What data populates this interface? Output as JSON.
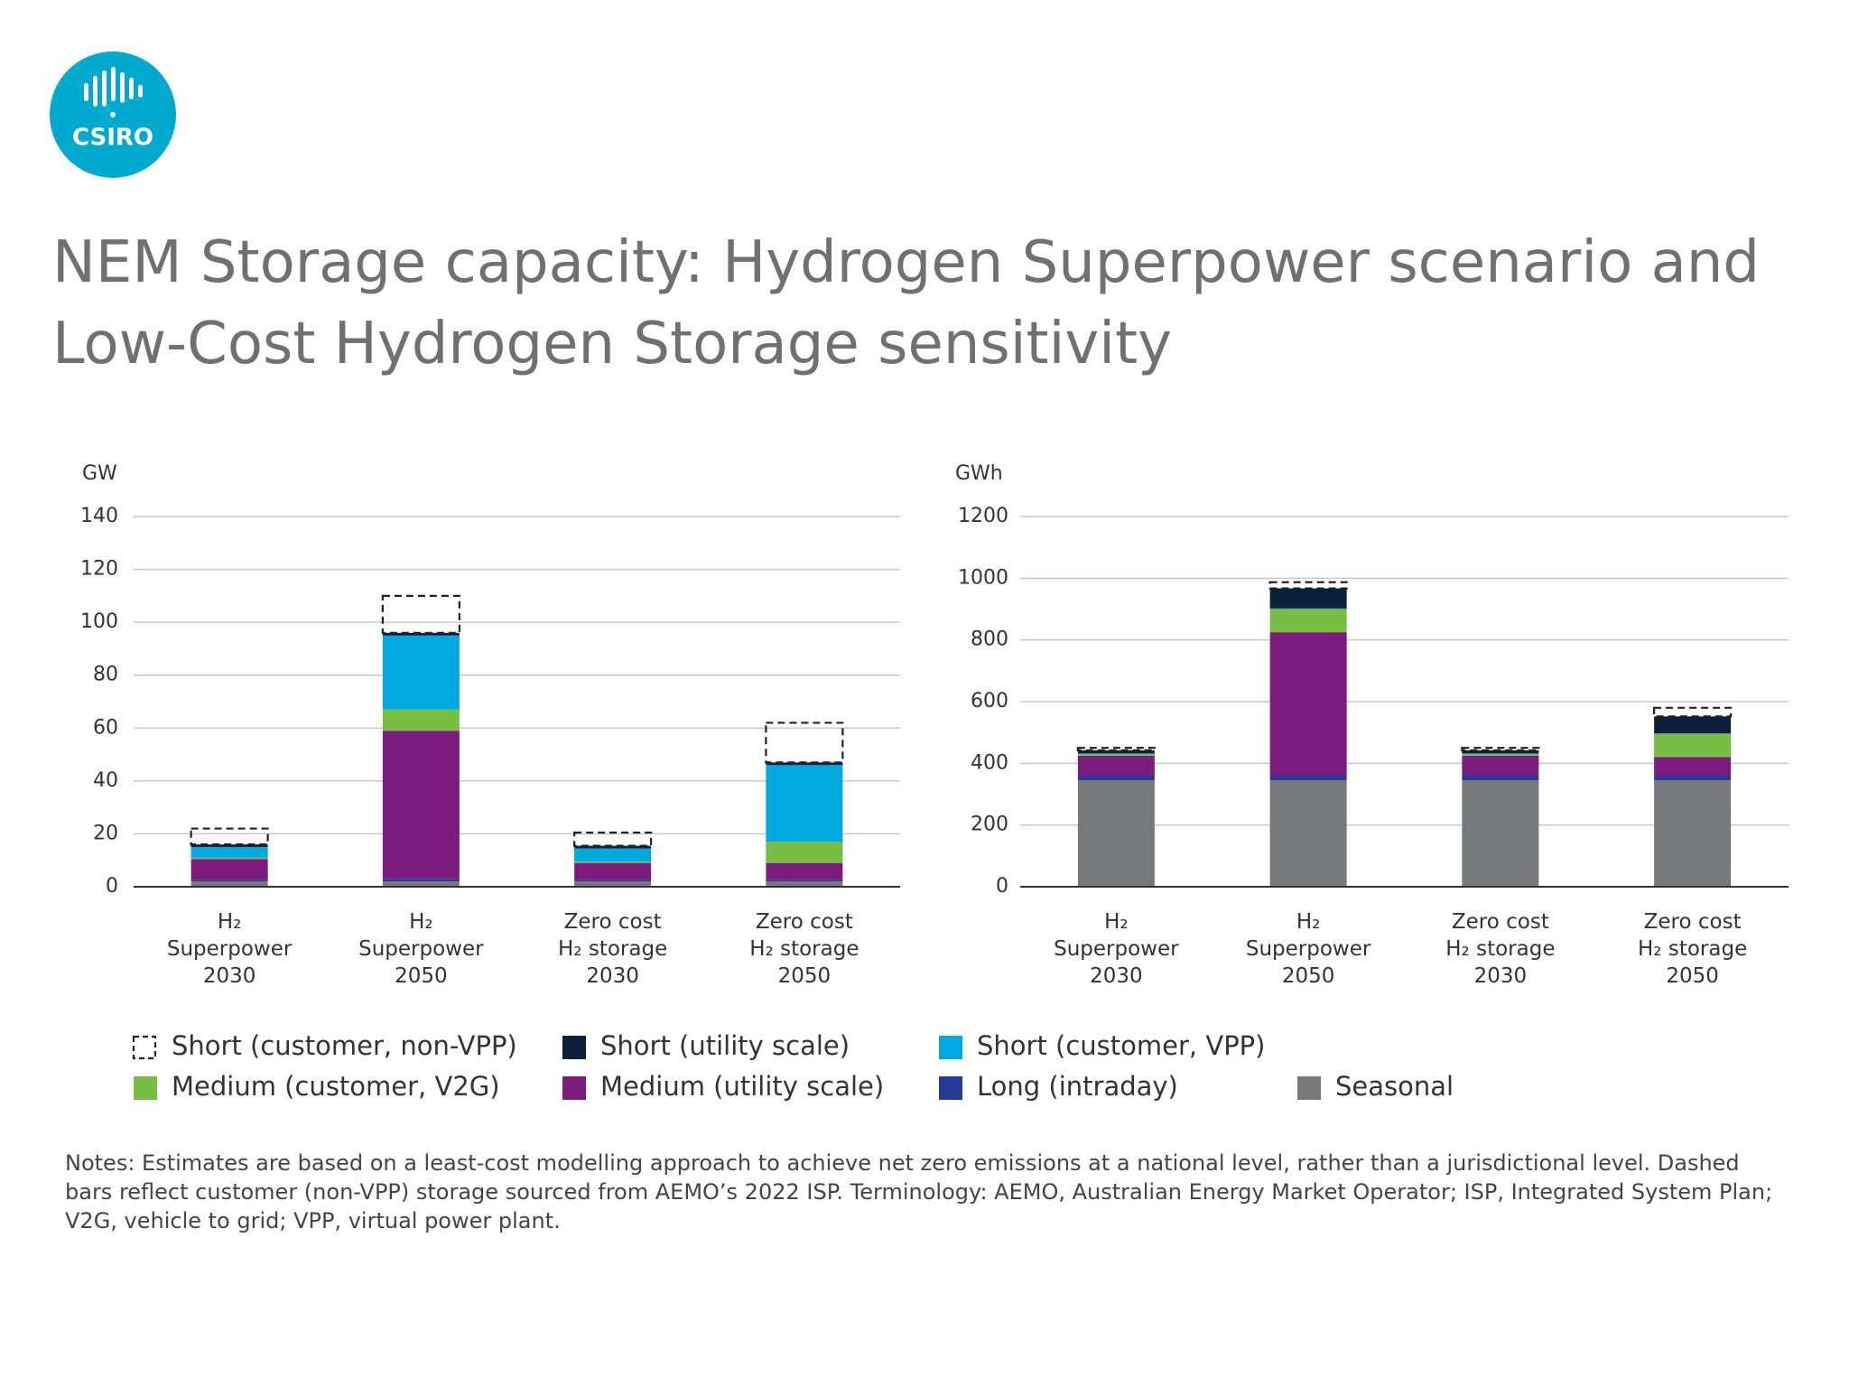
{
  "logo": {
    "text": "CSIRO"
  },
  "title": "NEM Storage capacity: Hydrogen Superpower scenario and Low-Cost Hydrogen Storage sensitivity",
  "notes": "Notes: Estimates are based on a least-cost modelling approach to achieve net zero emissions at a national level, rather than a jurisdictional level. Dashed bars reflect customer (non-VPP) storage sourced from AEMO’s 2022 ISP. Terminology: AEMO, Australian Energy Market Operator; ISP, Integrated System Plan; V2G, vehicle to grid; VPP, virtual power plant.",
  "chart_data": [
    {
      "type": "stacked_bar",
      "y_label": "GW",
      "categories": [
        "H₂\nSuperpower\n2030",
        "H₂\nSuperpower\n2050",
        "Zero cost\nH₂ storage\n2030",
        "Zero cost\nH₂ storage\n2050"
      ],
      "ylim": [
        0,
        140
      ],
      "yticks": [
        0,
        20,
        40,
        60,
        80,
        100,
        120,
        140
      ],
      "grid": true,
      "series": [
        {
          "name": "Short (customer, non-VPP)",
          "color": "#222222",
          "dashed": true,
          "values": [
            6,
            14,
            5,
            15
          ]
        },
        {
          "name": "Short (utility scale)",
          "color": "#0b1f3a",
          "values": [
            1,
            1,
            1,
            1
          ]
        },
        {
          "name": "Short (customer, VPP)",
          "color": "#00a9e0",
          "values": [
            4,
            28,
            5,
            29
          ]
        },
        {
          "name": "Medium (customer, V2G)",
          "color": "#78be43",
          "values": [
            0.5,
            8,
            0.5,
            8
          ]
        },
        {
          "name": "Medium (utility scale)",
          "color": "#7b1c7e",
          "values": [
            8,
            56,
            6.5,
            6.5
          ]
        },
        {
          "name": "Long (intraday)",
          "color": "#263b97",
          "values": [
            0.5,
            1,
            0.5,
            0.5
          ]
        },
        {
          "name": "Seasonal",
          "color": "#77787b",
          "values": [
            2,
            2,
            2,
            2
          ]
        }
      ]
    },
    {
      "type": "stacked_bar",
      "y_label": "GWh",
      "categories": [
        "H₂\nSuperpower\n2030",
        "H₂\nSuperpower\n2050",
        "Zero cost\nH₂ storage\n2030",
        "Zero cost\nH₂ storage\n2050"
      ],
      "ylim": [
        0,
        1200
      ],
      "yticks": [
        0,
        200,
        400,
        600,
        800,
        1000,
        1200
      ],
      "grid": true,
      "series": [
        {
          "color": "#222222",
          "dashed": true,
          "values": [
            8,
            20,
            8,
            28
          ]
        },
        {
          "color": "#0b1f3a",
          "values": [
            10,
            65,
            10,
            55
          ]
        },
        {
          "color": "#00a9e0",
          "values": [
            2,
            2,
            2,
            2
          ]
        },
        {
          "color": "#78be43",
          "values": [
            5,
            75,
            5,
            75
          ]
        },
        {
          "color": "#7b1c7e",
          "values": [
            65,
            465,
            65,
            60
          ]
        },
        {
          "color": "#263b97",
          "values": [
            15,
            15,
            15,
            15
          ]
        },
        {
          "color": "#77787b",
          "values": [
            345,
            345,
            345,
            345
          ]
        }
      ]
    }
  ]
}
